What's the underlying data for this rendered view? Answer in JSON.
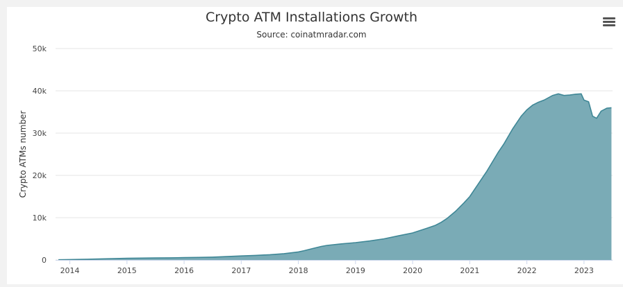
{
  "chart_data": {
    "type": "area",
    "title": "Crypto ATM Installations Growth",
    "subtitle": "Source: coinatmradar.com",
    "ylabel": "Crypto ATMs number",
    "xlabel": "",
    "ylim": [
      0,
      50000
    ],
    "yticks": [
      {
        "value": 0,
        "label": "0"
      },
      {
        "value": 10000,
        "label": "10k"
      },
      {
        "value": 20000,
        "label": "20k"
      },
      {
        "value": 30000,
        "label": "30k"
      },
      {
        "value": 40000,
        "label": "40k"
      },
      {
        "value": 50000,
        "label": "50k"
      }
    ],
    "xlim": [
      2013.75,
      2023.5
    ],
    "xticks": [
      {
        "value": 2014,
        "label": "2014"
      },
      {
        "value": 2015,
        "label": "2015"
      },
      {
        "value": 2016,
        "label": "2016"
      },
      {
        "value": 2017,
        "label": "2017"
      },
      {
        "value": 2018,
        "label": "2018"
      },
      {
        "value": 2019,
        "label": "2019"
      },
      {
        "value": 2020,
        "label": "2020"
      },
      {
        "value": 2021,
        "label": "2021"
      },
      {
        "value": 2022,
        "label": "2022"
      },
      {
        "value": 2023,
        "label": "2023"
      }
    ],
    "grid": true,
    "legend": "none",
    "fill_color": "#7aabb6",
    "line_color": "#3f8796",
    "series": [
      {
        "points": [
          [
            2013.8,
            50
          ],
          [
            2014.0,
            100
          ],
          [
            2014.25,
            150
          ],
          [
            2014.5,
            230
          ],
          [
            2014.75,
            320
          ],
          [
            2015.0,
            400
          ],
          [
            2015.25,
            450
          ],
          [
            2015.5,
            480
          ],
          [
            2015.75,
            510
          ],
          [
            2016.0,
            560
          ],
          [
            2016.25,
            600
          ],
          [
            2016.5,
            680
          ],
          [
            2016.75,
            800
          ],
          [
            2017.0,
            950
          ],
          [
            2017.25,
            1080
          ],
          [
            2017.5,
            1250
          ],
          [
            2017.75,
            1500
          ],
          [
            2018.0,
            1900
          ],
          [
            2018.1,
            2200
          ],
          [
            2018.25,
            2700
          ],
          [
            2018.4,
            3200
          ],
          [
            2018.5,
            3450
          ],
          [
            2018.75,
            3800
          ],
          [
            2019.0,
            4100
          ],
          [
            2019.25,
            4500
          ],
          [
            2019.5,
            5000
          ],
          [
            2019.75,
            5700
          ],
          [
            2020.0,
            6400
          ],
          [
            2020.25,
            7500
          ],
          [
            2020.4,
            8200
          ],
          [
            2020.5,
            8900
          ],
          [
            2020.6,
            9800
          ],
          [
            2020.75,
            11500
          ],
          [
            2020.9,
            13500
          ],
          [
            2021.0,
            15000
          ],
          [
            2021.15,
            18000
          ],
          [
            2021.3,
            21000
          ],
          [
            2021.5,
            25500
          ],
          [
            2021.6,
            27500
          ],
          [
            2021.75,
            31000
          ],
          [
            2021.9,
            34000
          ],
          [
            2022.0,
            35500
          ],
          [
            2022.1,
            36600
          ],
          [
            2022.2,
            37300
          ],
          [
            2022.3,
            37800
          ],
          [
            2022.45,
            38900
          ],
          [
            2022.55,
            39300
          ],
          [
            2022.65,
            38900
          ],
          [
            2022.75,
            39000
          ],
          [
            2022.85,
            39200
          ],
          [
            2022.95,
            39300
          ],
          [
            2023.0,
            37800
          ],
          [
            2023.08,
            37400
          ],
          [
            2023.15,
            34000
          ],
          [
            2023.22,
            33500
          ],
          [
            2023.3,
            35200
          ],
          [
            2023.4,
            35900
          ],
          [
            2023.48,
            36000
          ]
        ]
      }
    ]
  }
}
